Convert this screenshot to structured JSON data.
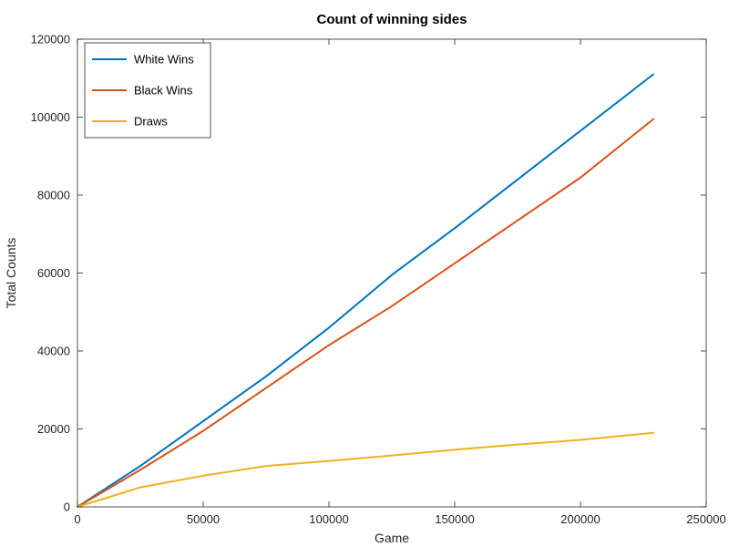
{
  "chart_data": {
    "type": "line",
    "title": "Count of winning sides",
    "xlabel": "Game",
    "ylabel": "Total Counts",
    "xlim": [
      0,
      250000
    ],
    "ylim": [
      0,
      120000
    ],
    "xticks": [
      0,
      50000,
      100000,
      150000,
      200000,
      250000
    ],
    "yticks": [
      0,
      20000,
      40000,
      60000,
      80000,
      100000,
      120000
    ],
    "xtick_labels": [
      "0",
      "50000",
      "100000",
      "150000",
      "200000",
      "250000"
    ],
    "ytick_labels": [
      "0",
      "20000",
      "40000",
      "60000",
      "80000",
      "100000",
      "120000"
    ],
    "grid": false,
    "legend_position": "top-left",
    "series": [
      {
        "name": "White Wins",
        "color": "#0072bd",
        "x": [
          0,
          25000,
          50000,
          75000,
          100000,
          125000,
          150000,
          175000,
          200000,
          229000
        ],
        "y": [
          0,
          10500,
          22000,
          33500,
          46000,
          59500,
          71500,
          84000,
          96500,
          111000
        ]
      },
      {
        "name": "Black Wins",
        "color": "#d95319",
        "x": [
          0,
          25000,
          50000,
          75000,
          100000,
          125000,
          150000,
          175000,
          200000,
          229000
        ],
        "y": [
          0,
          9500,
          19500,
          30500,
          41500,
          51500,
          62500,
          73500,
          84500,
          99500
        ]
      },
      {
        "name": "Draws",
        "color": "#edb120",
        "x": [
          0,
          25000,
          50000,
          75000,
          100000,
          125000,
          150000,
          175000,
          200000,
          229000
        ],
        "y": [
          0,
          5000,
          8000,
          10500,
          11800,
          13200,
          14700,
          16000,
          17200,
          19000
        ]
      }
    ]
  }
}
